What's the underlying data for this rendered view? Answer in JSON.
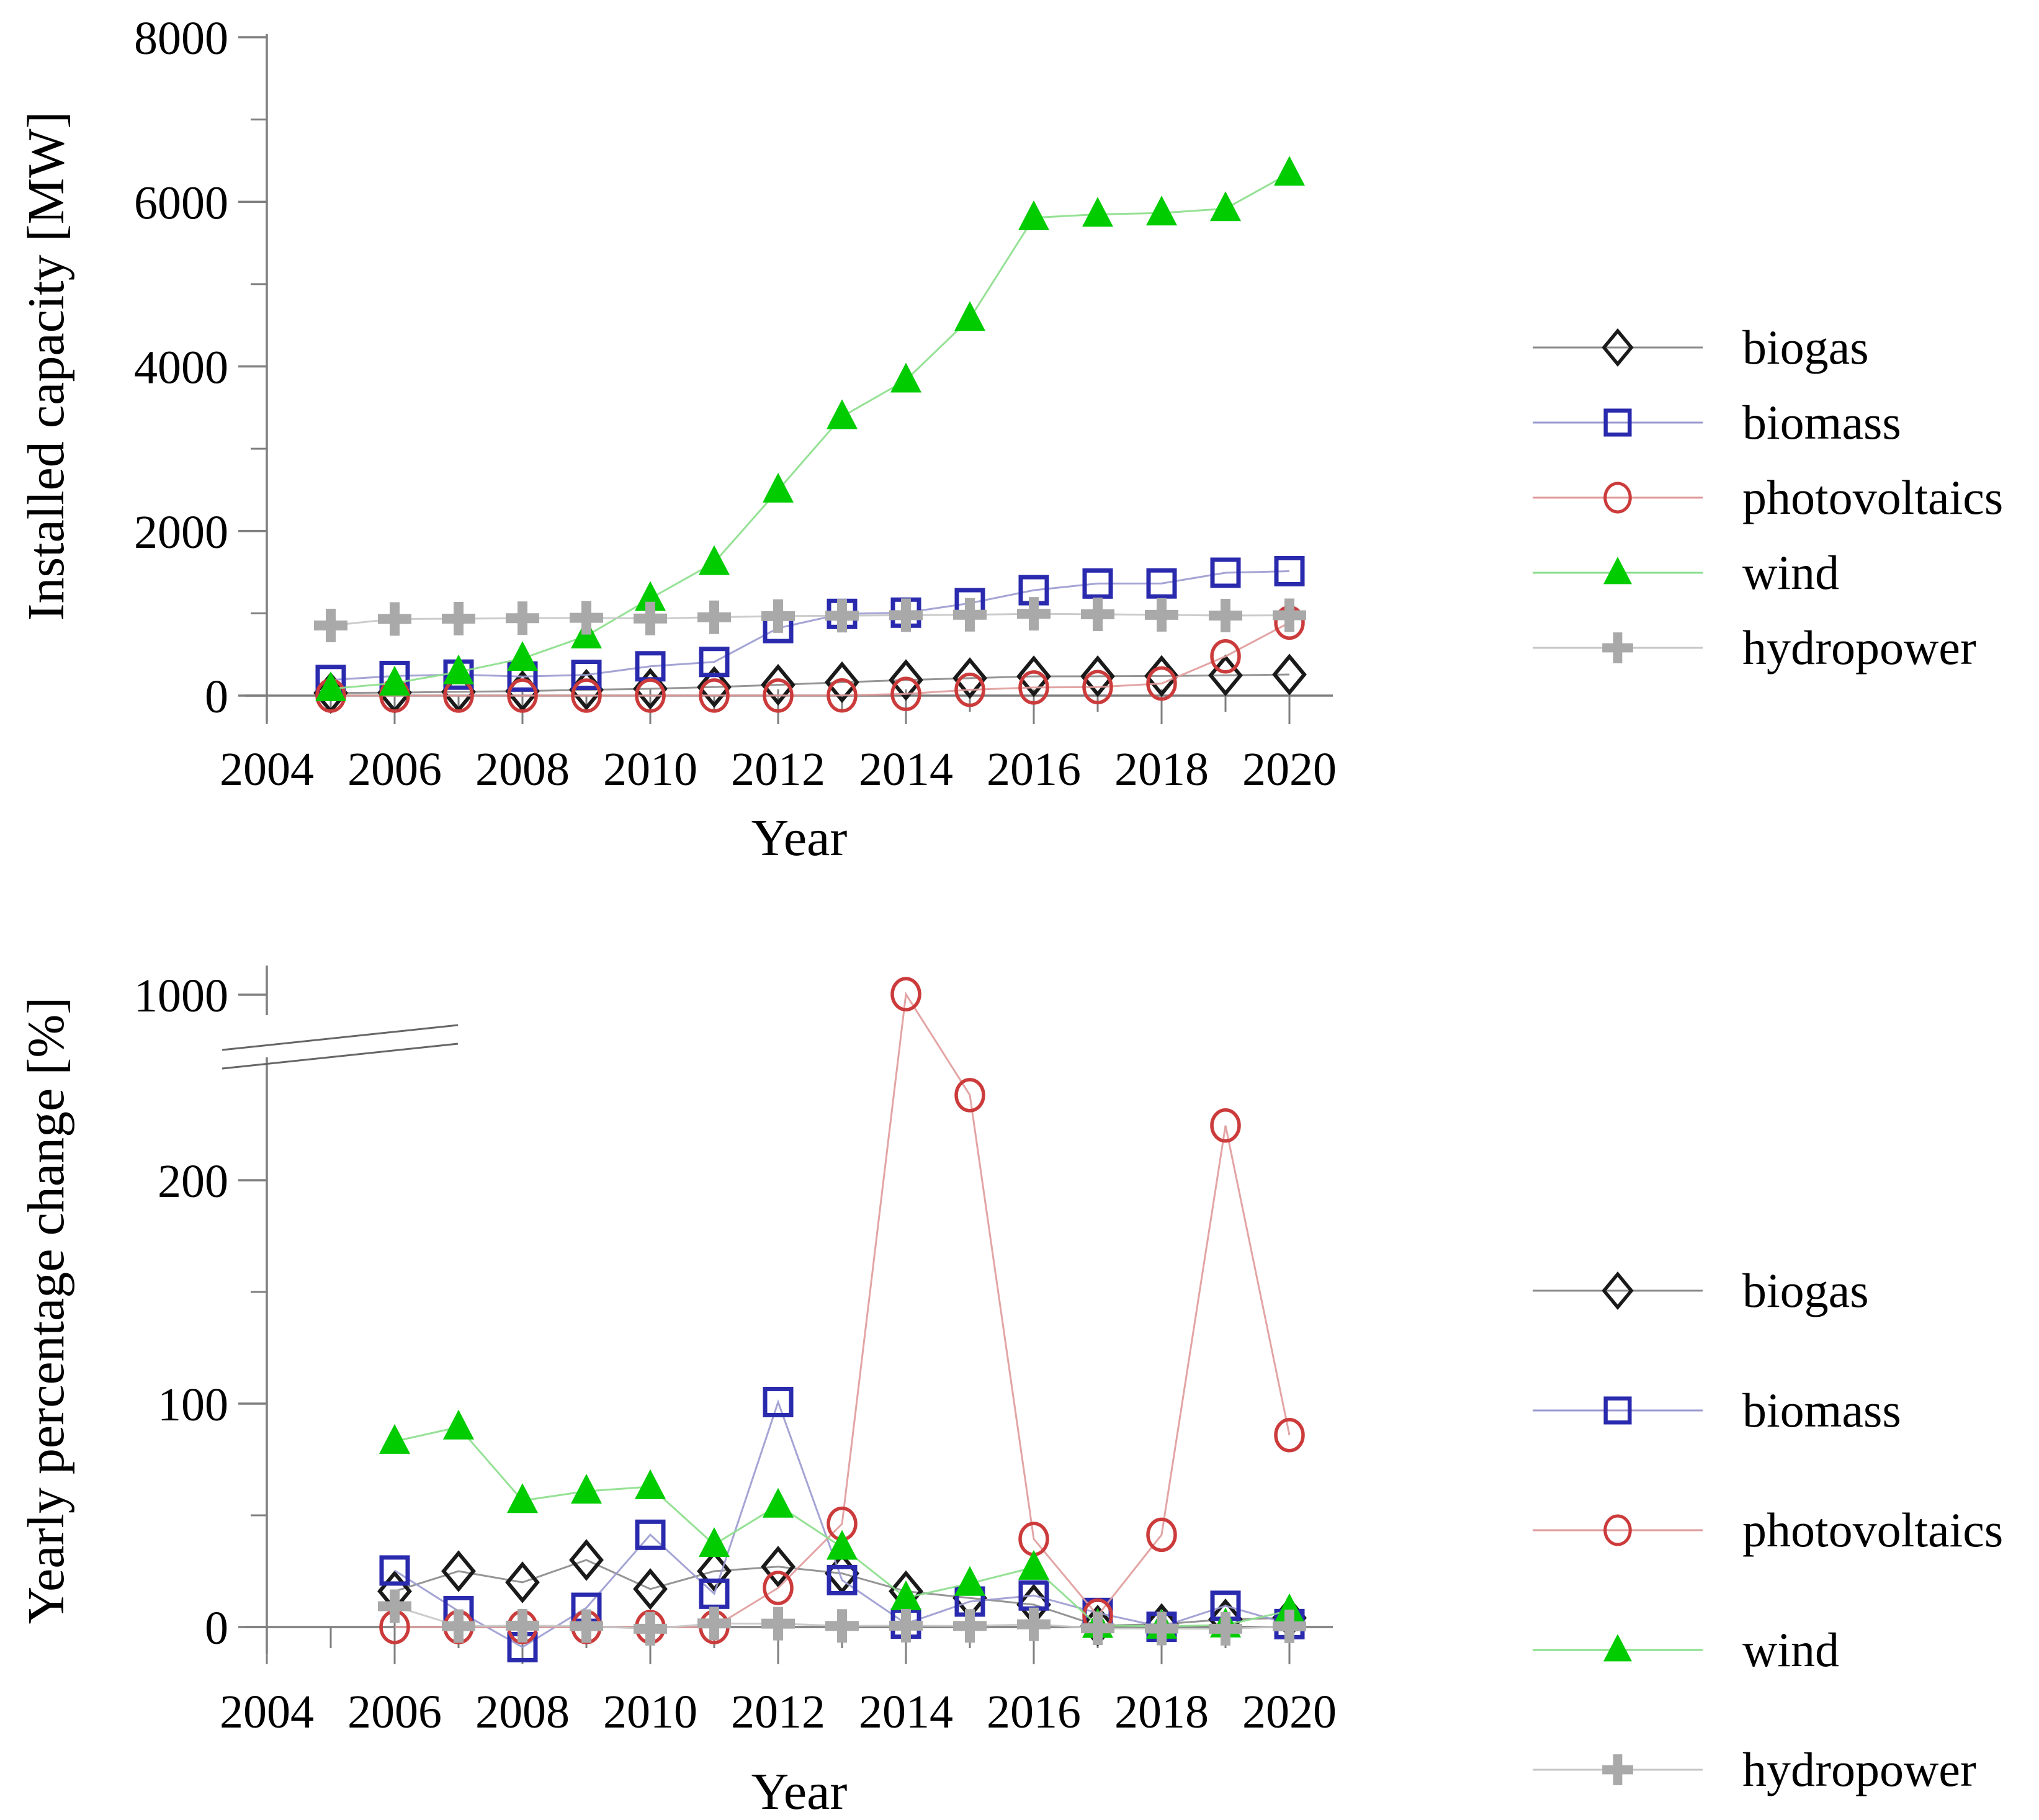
{
  "figure": {
    "background": "#ffffff",
    "top_xlabel": "Year",
    "bottom_xlabel": "Year"
  },
  "colors": {
    "biogas": "#1a1a1a",
    "biogas_line": "#8a8a8a",
    "biomass": "#2a2aae",
    "biomass_line": "#9a9ad0",
    "photovoltaics": "#cc3b3b",
    "photovoltaics_line": "#e09a9a",
    "wind": "#00cc00",
    "wind_line": "#8ade8a",
    "hydropower": "#a9a9a9",
    "hydropower_line": "#c6c6c6",
    "axis": "#7f7f7f",
    "text": "#000000"
  },
  "legend": {
    "items": [
      {
        "series": "biogas",
        "label": "biogas",
        "marker": "diamond"
      },
      {
        "series": "biomass",
        "label": "biomass",
        "marker": "square"
      },
      {
        "series": "photovoltaics",
        "label": "photovoltaics",
        "marker": "circle"
      },
      {
        "series": "wind",
        "label": "wind",
        "marker": "triangle"
      },
      {
        "series": "hydropower",
        "label": "hydropower",
        "marker": "plus"
      }
    ]
  },
  "chart_data": [
    {
      "id": "installed-capacity",
      "type": "line",
      "title": "",
      "xlabel": "Year",
      "ylabel": "Installed capacity [MW]",
      "x": [
        2005,
        2006,
        2007,
        2008,
        2009,
        2010,
        2011,
        2012,
        2013,
        2014,
        2015,
        2016,
        2017,
        2018,
        2019,
        2020
      ],
      "xlim": [
        2003.6,
        2020.7
      ],
      "ylim": [
        0,
        8000
      ],
      "xticks_major": [
        2004,
        2006,
        2008,
        2010,
        2012,
        2014,
        2016,
        2018,
        2020
      ],
      "xticks_minor": [
        2005,
        2007,
        2009,
        2011,
        2013,
        2015,
        2017,
        2019
      ],
      "yticks": [
        [
          0,
          "0"
        ],
        [
          2000,
          "2000"
        ],
        [
          4000,
          "4000"
        ],
        [
          6000,
          "6000"
        ],
        [
          8000,
          "8000"
        ]
      ],
      "yticks_minor": [
        1000,
        3000,
        5000,
        7000
      ],
      "grid": false,
      "legend_position": "right",
      "series": [
        {
          "name": "biogas",
          "marker": "diamond",
          "values": [
            32,
            37,
            46,
            55,
            71,
            83,
            104,
            131,
            162,
            189,
            212,
            234,
            235,
            238,
            246,
            256
          ]
        },
        {
          "name": "biomass",
          "marker": "square",
          "values": [
            190,
            238,
            255,
            232,
            252,
            356,
            409,
            821,
            993,
            1008,
            1123,
            1281,
            1362,
            1363,
            1493,
            1512
          ]
        },
        {
          "name": "photovoltaics",
          "marker": "circle",
          "values": [
            0,
            0,
            0,
            0,
            0,
            0,
            1,
            1,
            2,
            21,
            71,
            99,
            104,
            147,
            477,
            887
          ]
        },
        {
          "name": "wind",
          "marker": "triangle",
          "values": [
            83,
            152,
            288,
            451,
            725,
            1180,
            1616,
            2497,
            3389,
            3834,
            4582,
            5807,
            5848,
            5864,
            5917,
            6347
          ]
        },
        {
          "name": "hydropower",
          "marker": "plus",
          "values": [
            852,
            931,
            935,
            941,
            945,
            937,
            952,
            966,
            971,
            977,
            982,
            994,
            988,
            981,
            973,
            976
          ]
        }
      ]
    },
    {
      "id": "yearly-percentage-change",
      "type": "line",
      "title": "",
      "xlabel": "Year",
      "ylabel": "Yearly percentage change [%]",
      "x": [
        2006,
        2007,
        2008,
        2009,
        2010,
        2011,
        2012,
        2013,
        2014,
        2015,
        2016,
        2017,
        2018,
        2019,
        2020
      ],
      "xlim": [
        2003.6,
        2020.7
      ],
      "ylim": [
        -25,
        1050
      ],
      "axis_break": {
        "from": 250,
        "to": 1000
      },
      "xticks_major": [
        2004,
        2006,
        2008,
        2010,
        2012,
        2014,
        2016,
        2018,
        2020
      ],
      "xticks_minor": [
        2005,
        2007,
        2009,
        2011,
        2013,
        2015,
        2017,
        2019
      ],
      "yticks": [
        [
          0,
          "0"
        ],
        [
          100,
          "100"
        ],
        [
          200,
          "200"
        ],
        [
          1000,
          "1000"
        ]
      ],
      "yticks_minor": [
        50,
        150
      ],
      "grid": false,
      "legend_position": "right",
      "series": [
        {
          "name": "biogas",
          "marker": "diamond",
          "values": [
            16,
            25,
            20,
            30,
            17,
            25,
            27,
            24,
            16,
            13,
            10,
            0.6,
            1.3,
            3.4,
            4.1
          ]
        },
        {
          "name": "biomass",
          "marker": "square",
          "values": [
            25.3,
            7.1,
            -9.0,
            8.6,
            41.3,
            14.9,
            100.7,
            21.0,
            1.5,
            11.4,
            14.1,
            6.3,
            0.1,
            9.5,
            1.3
          ]
        },
        {
          "name": "photovoltaics",
          "marker": "circle",
          "values": [
            0,
            0,
            0,
            0,
            0,
            0,
            17.5,
            46.2,
            1005,
            238.1,
            39.4,
            5.1,
            41.3,
            224.5,
            85.9
          ]
        },
        {
          "name": "wind",
          "marker": "triangle",
          "values": [
            83.1,
            89.5,
            56.6,
            60.8,
            62.8,
            36.9,
            54.5,
            35.7,
            13.1,
            19.5,
            26.7,
            0.7,
            0.3,
            0.9,
            7.3
          ]
        },
        {
          "name": "hydropower",
          "marker": "plus",
          "values": [
            9.3,
            0.4,
            0.6,
            0.4,
            -0.8,
            1.6,
            1.5,
            0.5,
            0.6,
            0.5,
            1.2,
            -0.6,
            -0.7,
            -0.8,
            0.3
          ]
        }
      ]
    }
  ]
}
